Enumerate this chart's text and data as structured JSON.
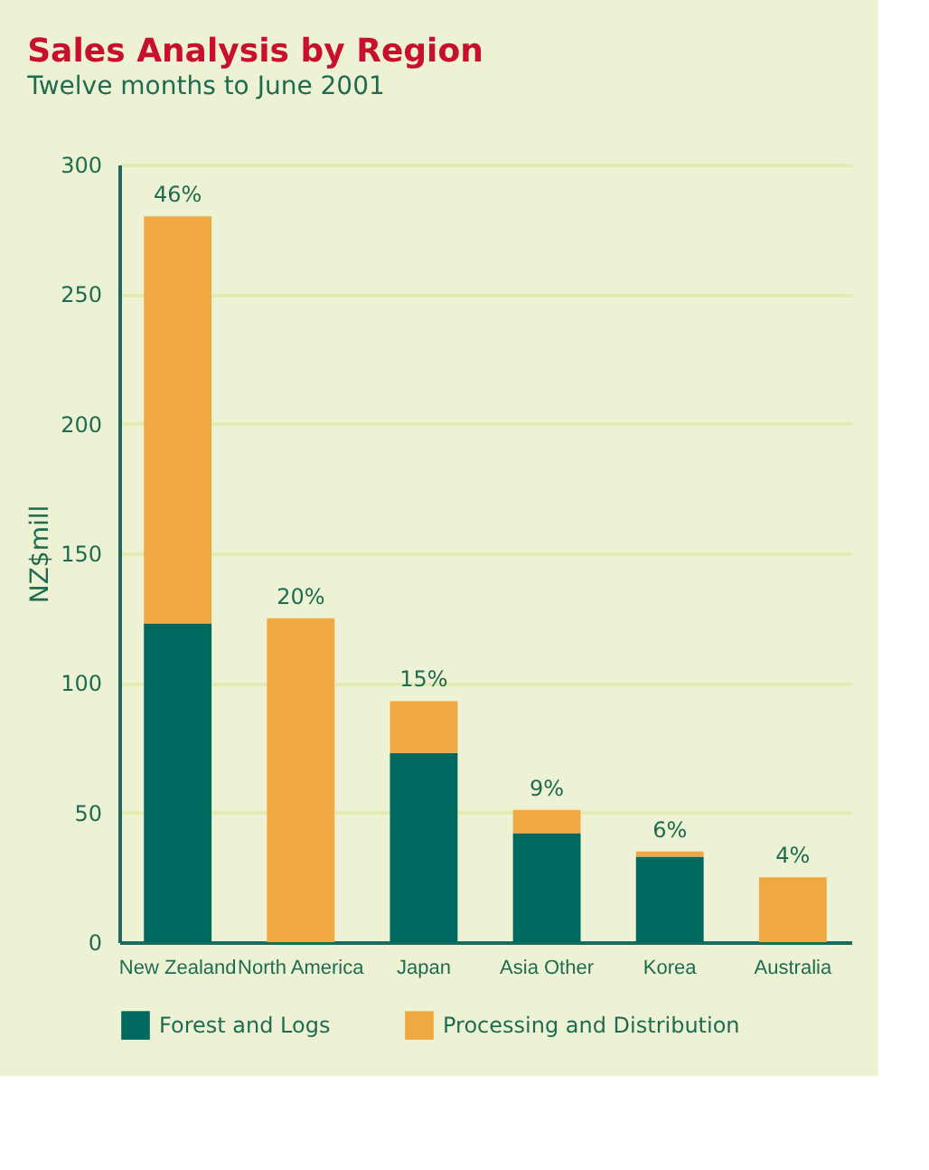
{
  "chart_data": {
    "type": "bar",
    "title": "Sales Analysis by Region",
    "subtitle": "Twelve months to June 2001",
    "ylabel": "NZ$mill",
    "categories": [
      "New Zealand",
      "North America",
      "Japan",
      "Asia Other",
      "Korea",
      "Australia"
    ],
    "stacked": true,
    "series": [
      {
        "name": "Forest and Logs",
        "color": "#00695f",
        "values": [
          123,
          0,
          73,
          42,
          33,
          0
        ]
      },
      {
        "name": "Processing and Distribution",
        "color": "#f0a842",
        "values": [
          157,
          125,
          20,
          9,
          2,
          25
        ]
      }
    ],
    "annotations": [
      {
        "text": "46%",
        "x": "New Zealand",
        "y": 280
      },
      {
        "text": "20%",
        "x": "North America",
        "y": 125
      },
      {
        "text": "15%",
        "x": "Japan",
        "y": 93
      },
      {
        "text": "9%",
        "x": "Asia Other",
        "y": 51
      },
      {
        "text": "6%",
        "x": "Korea",
        "y": 35
      },
      {
        "text": "4%",
        "x": "Australia",
        "y": 25
      }
    ],
    "ylim": [
      0,
      300
    ],
    "yticks": [
      0,
      50,
      100,
      150,
      200,
      250,
      300
    ],
    "grid": "y",
    "legend": "bottom"
  }
}
